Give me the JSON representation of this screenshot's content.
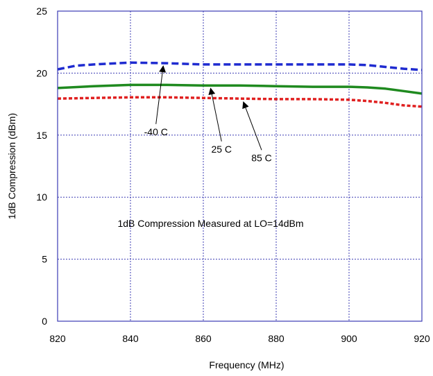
{
  "chart_data": {
    "type": "line",
    "title": "",
    "xlabel": "Frequency (MHz)",
    "ylabel": "1dB Compression (dBm)",
    "xlim": [
      820,
      920
    ],
    "ylim": [
      0,
      25
    ],
    "x_ticks": [
      820,
      840,
      860,
      880,
      900,
      920
    ],
    "y_ticks": [
      0,
      5,
      10,
      15,
      20,
      25
    ],
    "x_tick_labels": [
      "820",
      "840",
      "860",
      "880",
      "900",
      "920"
    ],
    "y_tick_labels": [
      "0",
      "5",
      "10",
      "15",
      "20",
      "25"
    ],
    "grid": true,
    "series": [
      {
        "name": "-40 C",
        "color": "#1f2bd0",
        "dash": "long-dash",
        "x": [
          820,
          825,
          830,
          840,
          850,
          860,
          870,
          880,
          890,
          900,
          905,
          910,
          915,
          920
        ],
        "y": [
          20.3,
          20.6,
          20.7,
          20.85,
          20.8,
          20.7,
          20.7,
          20.7,
          20.7,
          20.7,
          20.65,
          20.5,
          20.35,
          20.25
        ]
      },
      {
        "name": "25 C",
        "color": "#1f8a1f",
        "dash": "solid",
        "x": [
          820,
          830,
          840,
          850,
          860,
          870,
          880,
          890,
          900,
          905,
          910,
          915,
          920
        ],
        "y": [
          18.8,
          18.95,
          19.05,
          19.05,
          19.0,
          19.0,
          18.95,
          18.9,
          18.9,
          18.85,
          18.75,
          18.55,
          18.35
        ]
      },
      {
        "name": "85 C",
        "color": "#e02020",
        "dash": "short-dash",
        "x": [
          820,
          830,
          840,
          850,
          860,
          870,
          880,
          890,
          900,
          905,
          910,
          915,
          920
        ],
        "y": [
          17.95,
          18.0,
          18.05,
          18.05,
          18.0,
          17.95,
          17.9,
          17.9,
          17.85,
          17.75,
          17.6,
          17.4,
          17.3
        ]
      }
    ],
    "annotations": [
      {
        "text": "-40 C",
        "label_x": 847,
        "label_y": 15.0,
        "arrow_to_x": 849,
        "arrow_to_y": 20.8
      },
      {
        "text": "25 C",
        "label_x": 865,
        "label_y": 13.6,
        "arrow_to_x": 862,
        "arrow_to_y": 19.0
      },
      {
        "text": "85 C",
        "label_x": 876,
        "label_y": 12.9,
        "arrow_to_x": 871,
        "arrow_to_y": 17.9
      },
      {
        "text": "1dB Compression Measured at LO=14dBm",
        "label_x": 862,
        "label_y": 7.6
      }
    ]
  }
}
